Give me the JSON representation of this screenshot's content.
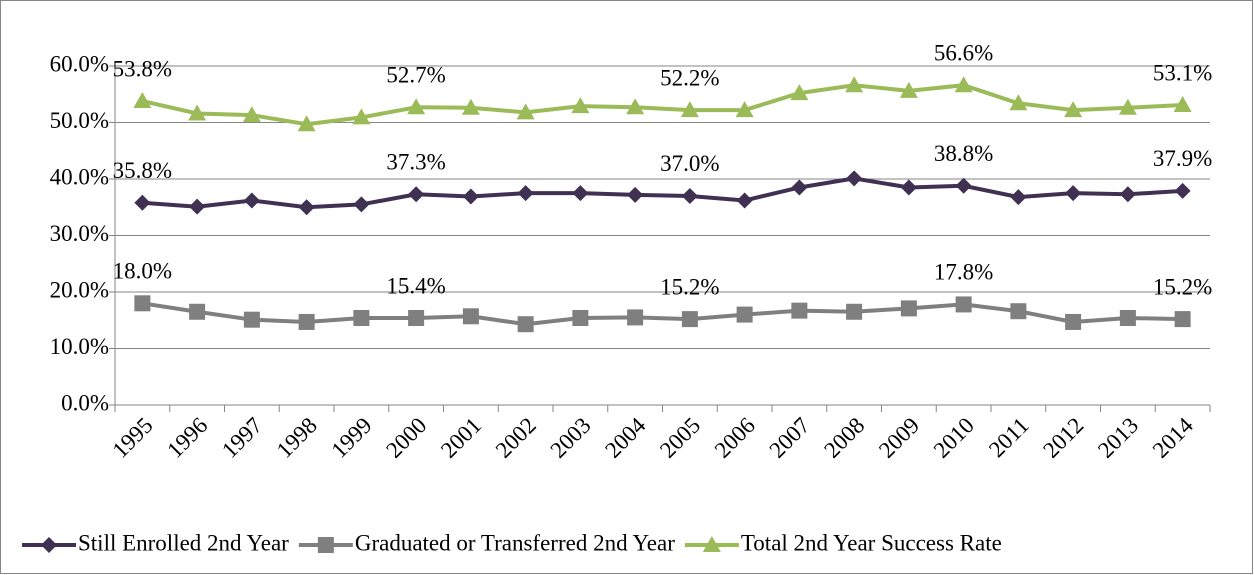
{
  "chart_data": {
    "type": "line",
    "categories": [
      "1995",
      "1996",
      "1997",
      "1998",
      "1999",
      "2000",
      "2001",
      "2002",
      "2003",
      "2004",
      "2005",
      "2006",
      "2007",
      "2008",
      "2009",
      "2010",
      "2011",
      "2012",
      "2013",
      "2014"
    ],
    "series": [
      {
        "name": "Still Enrolled 2nd Year",
        "color": "#403152",
        "marker": "diamond",
        "values": [
          35.8,
          35.1,
          36.2,
          35.0,
          35.5,
          37.3,
          36.9,
          37.5,
          37.5,
          37.2,
          37.0,
          36.2,
          38.5,
          40.1,
          38.5,
          38.8,
          36.8,
          37.5,
          37.3,
          37.9
        ],
        "value_labels": [
          "35.8%",
          null,
          null,
          null,
          null,
          "37.3%",
          null,
          null,
          null,
          null,
          "37.0%",
          null,
          null,
          null,
          null,
          "38.8%",
          null,
          null,
          null,
          "37.9%"
        ]
      },
      {
        "name": "Graduated or Transferred 2nd Year",
        "color": "#7f7f7f",
        "marker": "square",
        "values": [
          18.0,
          16.5,
          15.1,
          14.7,
          15.4,
          15.4,
          15.7,
          14.3,
          15.4,
          15.5,
          15.2,
          16.0,
          16.7,
          16.5,
          17.1,
          17.8,
          16.6,
          14.7,
          15.4,
          15.2
        ],
        "value_labels": [
          "18.0%",
          null,
          null,
          null,
          null,
          "15.4%",
          null,
          null,
          null,
          null,
          "15.2%",
          null,
          null,
          null,
          null,
          "17.8%",
          null,
          null,
          null,
          "15.2%"
        ]
      },
      {
        "name": "Total 2nd Year Success Rate",
        "color": "#9bbb59",
        "marker": "triangle",
        "values": [
          53.8,
          51.6,
          51.3,
          49.7,
          50.9,
          52.7,
          52.6,
          51.8,
          52.9,
          52.7,
          52.2,
          52.2,
          55.2,
          56.6,
          55.6,
          56.6,
          53.4,
          52.2,
          52.6,
          53.1
        ],
        "value_labels": [
          "53.8%",
          null,
          null,
          null,
          null,
          "52.7%",
          null,
          null,
          null,
          null,
          "52.2%",
          null,
          null,
          null,
          null,
          "56.6%",
          null,
          null,
          null,
          "53.1%"
        ]
      }
    ],
    "ylim": [
      0,
      60
    ],
    "yticks": [
      {
        "value": 0,
        "label": "0.0%"
      },
      {
        "value": 10,
        "label": "10.0%"
      },
      {
        "value": 20,
        "label": "20.0%"
      },
      {
        "value": 30,
        "label": "30.0%"
      },
      {
        "value": 40,
        "label": "40.0%"
      },
      {
        "value": 50,
        "label": "50.0%"
      },
      {
        "value": 60,
        "label": "60.0%"
      }
    ],
    "grid": true,
    "legend": "bottom"
  }
}
